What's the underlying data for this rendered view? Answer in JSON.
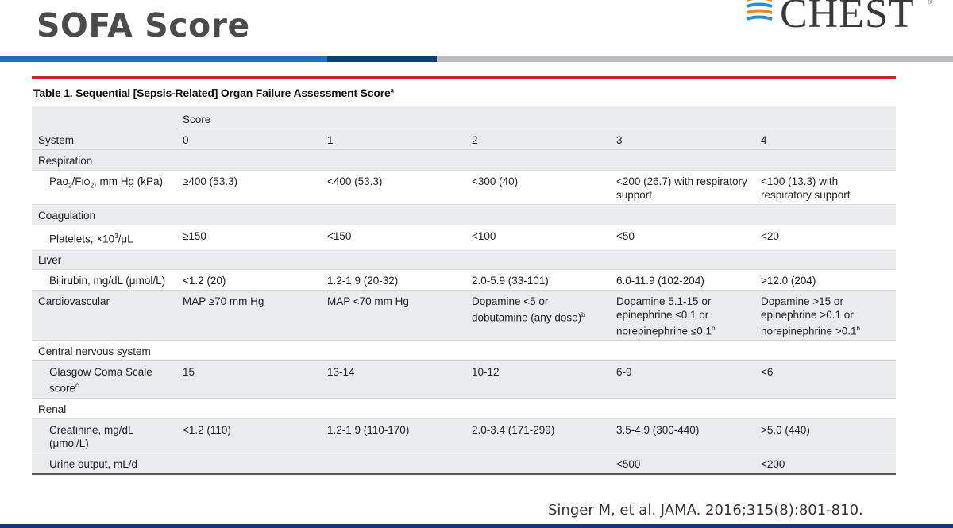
{
  "slide": {
    "title": "SOFA Score",
    "citation": "Singer M, et al. JAMA. 2016;315(8):801-810."
  },
  "logo": {
    "text": "CHEST",
    "tm": "®"
  },
  "colors": {
    "band_blue": "#1f6fb6",
    "band_dark": "#103f78",
    "band_grey": "#b7b9bc",
    "table_rule_red": "#c1272d",
    "row_shade": "#e9ebec"
  },
  "table": {
    "caption": "Table 1. Sequential [Sepsis-Related] Organ Failure Assessment Score",
    "caption_sup": "a",
    "header": {
      "score_label": "Score",
      "system_label": "System",
      "scores": [
        "0",
        "1",
        "2",
        "3",
        "4"
      ]
    },
    "rows": {
      "respiration": {
        "label": "Respiration",
        "param": {
          "pao": "Pao",
          "pao_sub": "2",
          "sep": "/F",
          "fio": "IO",
          "fio_sub": "2",
          "unit": ", mm Hg (kPa)",
          "v0": "≥400 (53.3)",
          "v1": "<400 (53.3)",
          "v2": "<300 (40)",
          "v3": "<200 (26.7) with respiratory support",
          "v4": "<100 (13.3) with respiratory support"
        }
      },
      "coagulation": {
        "label": "Coagulation",
        "param": {
          "pre": "Platelets, ×10",
          "sup": "3",
          "post": "/μL",
          "v0": "≥150",
          "v1": "<150",
          "v2": "<100",
          "v3": "<50",
          "v4": "<20"
        }
      },
      "liver": {
        "label": "Liver",
        "param": {
          "name": "Bilirubin, mg/dL (μmol/L)",
          "v0": "<1.2 (20)",
          "v1": "1.2-1.9 (20-32)",
          "v2": "2.0-5.9 (33-101)",
          "v3": "6.0-11.9 (102-204)",
          "v4": ">12.0 (204)"
        }
      },
      "cardiovascular": {
        "label": "Cardiovascular",
        "v0": "MAP ≥70 mm Hg",
        "v1": "MAP <70 mm Hg",
        "v2": "Dopamine <5 or dobutamine (any dose)",
        "v2_sup": "b",
        "v3": "Dopamine 5.1-15 or epinephrine ≤0.1 or norepinephrine ≤0.1",
        "v3_sup": "b",
        "v4": "Dopamine >15 or epinephrine >0.1 or norepinephrine >0.1",
        "v4_sup": "b"
      },
      "cns": {
        "label": "Central nervous system",
        "param": {
          "name": "Glasgow Coma Scale score",
          "sup": "c",
          "v0": "15",
          "v1": "13-14",
          "v2": "10-12",
          "v3": "6-9",
          "v4": "<6"
        }
      },
      "renal": {
        "label": "Renal",
        "creatinine": {
          "name": "Creatinine, mg/dL (μmol/L)",
          "v0": "<1.2 (110)",
          "v1": "1.2-1.9 (110-170)",
          "v2": "2.0-3.4 (171-299)",
          "v3": "3.5-4.9 (300-440)",
          "v4": ">5.0 (440)"
        },
        "urine": {
          "name": "Urine output, mL/d",
          "v0": "",
          "v1": "",
          "v2": "",
          "v3": "<500",
          "v4": "<200"
        }
      }
    }
  }
}
